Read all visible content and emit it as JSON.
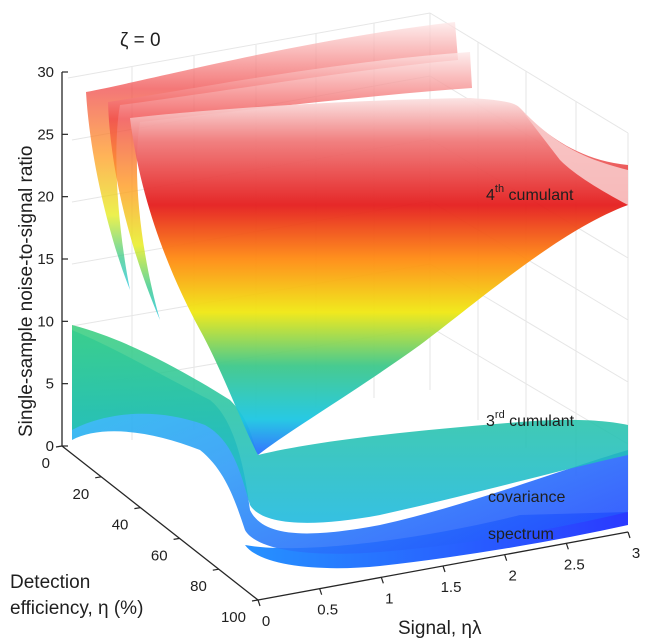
{
  "chart_data": {
    "type": "surface3d",
    "title": "ζ = 0",
    "xlabel": "Signal, ηλ",
    "ylabel_line1": "Detection",
    "ylabel_line2": "efficiency, η (%)",
    "zlabel": "Single-sample noise-to-signal ratio",
    "x_ticks": [
      "0",
      "0.5",
      "1",
      "1.5",
      "2",
      "2.5",
      "3"
    ],
    "y_ticks": [
      "0",
      "20",
      "40",
      "60",
      "80",
      "100"
    ],
    "z_ticks": [
      "0",
      "5",
      "10",
      "15",
      "20",
      "25",
      "30"
    ],
    "xlim": [
      0,
      3
    ],
    "ylim": [
      0,
      100
    ],
    "zlim": [
      0,
      30
    ],
    "grid": true,
    "colormap": [
      "#1a1aff",
      "#19c8e6",
      "#2fc88a",
      "#eaea10",
      "#ff8a10",
      "#e41a1a",
      "#ffffff"
    ],
    "series": [
      {
        "name": "spectrum",
        "sup": "",
        "suffix": "",
        "color": "#1f3dff",
        "approx_min": 1.2
      },
      {
        "name": "covariance",
        "sup": "",
        "suffix": "",
        "color": "#2f55ff",
        "approx_min": 2.5
      },
      {
        "name": "3",
        "sup": "rd",
        "suffix": " cumulant",
        "color": "#2cc893",
        "approx_value_at_x3": 4.5
      },
      {
        "name": "4",
        "sup": "th",
        "suffix": " cumulant",
        "color": "#ff6e1a",
        "approx_value_at_x3": 16.5
      }
    ]
  }
}
